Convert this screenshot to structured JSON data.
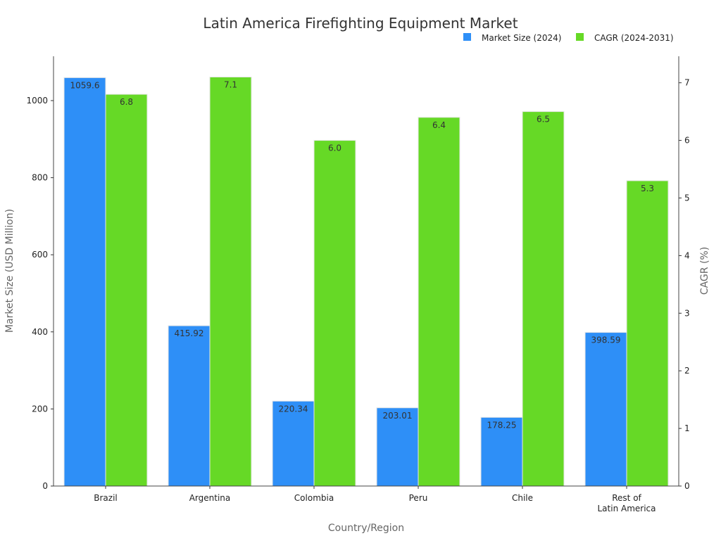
{
  "chart_data": {
    "type": "bar",
    "title": "Latin America Firefighting Equipment Market",
    "xlabel": "Country/Region",
    "ylabel": "Market Size (USD Million)",
    "y2label": "CAGR (%)",
    "categories": [
      "Brazil",
      "Argentina",
      "Colombia",
      "Peru",
      "Chile",
      "Rest of\nLatin America"
    ],
    "series": [
      {
        "name": "Market Size (2024)",
        "axis": "left",
        "color": "#2e8ff7",
        "values": [
          1059.6,
          415.92,
          220.34,
          203.01,
          178.25,
          398.59
        ],
        "labels": [
          "1059.6",
          "415.92",
          "220.34",
          "203.01",
          "178.25",
          "398.59"
        ]
      },
      {
        "name": "CAGR (2024-2031)",
        "axis": "right",
        "color": "#66d926",
        "values": [
          6.8,
          7.1,
          6.0,
          6.4,
          6.5,
          5.3
        ],
        "labels": [
          "6.8",
          "7.1",
          "6.0",
          "6.4",
          "6.5",
          "5.3"
        ]
      }
    ],
    "ylim": [
      0,
      1115
    ],
    "y2lim": [
      0,
      7.46
    ],
    "yticks": [
      0,
      200,
      400,
      600,
      800,
      1000
    ],
    "y2ticks": [
      0,
      1,
      2,
      3,
      4,
      5,
      6,
      7
    ],
    "grid": false,
    "legend": "top-right"
  }
}
